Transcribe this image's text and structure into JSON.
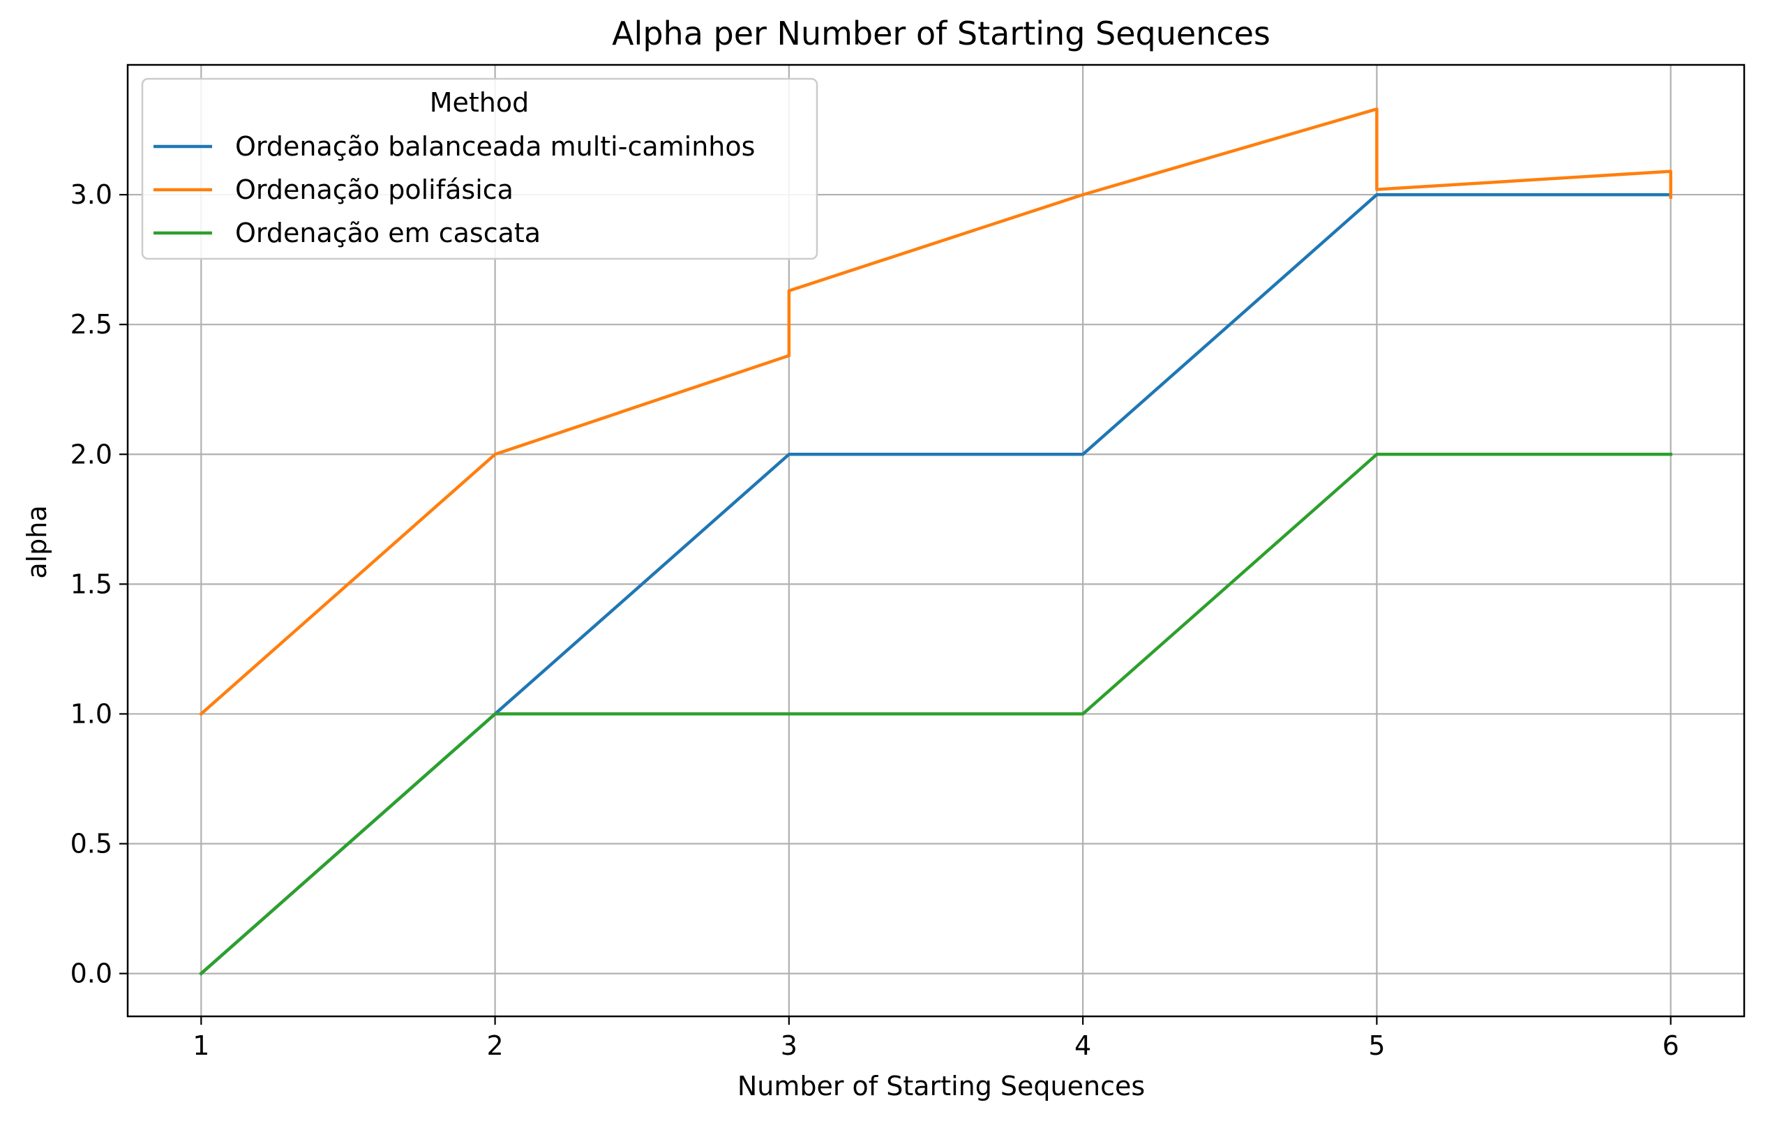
{
  "chart_data": {
    "type": "line",
    "title": "Alpha per Number of Starting Sequences",
    "xlabel": "Number of Starting Sequences",
    "ylabel": "alpha",
    "xlim": [
      0.75,
      6.25
    ],
    "ylim": [
      -0.165,
      3.5
    ],
    "xticks": [
      1,
      2,
      3,
      4,
      5,
      6
    ],
    "xtick_labels": [
      "1",
      "2",
      "3",
      "4",
      "5",
      "6"
    ],
    "yticks": [
      0.0,
      0.5,
      1.0,
      1.5,
      2.0,
      2.5,
      3.0
    ],
    "ytick_labels": [
      "0.0",
      "0.5",
      "1.0",
      "1.5",
      "2.0",
      "2.5",
      "3.0"
    ],
    "grid": true,
    "legend": {
      "title": "Method",
      "placement": "upper-left"
    },
    "series": [
      {
        "name": "Ordenação balanceada multi-caminhos",
        "color": "#1f77b4",
        "x": [
          1,
          2,
          3,
          4,
          5,
          6
        ],
        "y": [
          0,
          1,
          2,
          2,
          3,
          3
        ]
      },
      {
        "name": "Ordenação polifásica",
        "color": "#ff7f0e",
        "x": [
          1,
          2,
          3,
          3,
          4,
          5,
          5,
          6,
          6
        ],
        "y": [
          1,
          2,
          2.38,
          2.63,
          3,
          3.33,
          3.02,
          3.09,
          2.99
        ]
      },
      {
        "name": "Ordenação em cascata",
        "color": "#2ca02c",
        "x": [
          1,
          2,
          3,
          4,
          5,
          6
        ],
        "y": [
          0,
          1,
          1,
          1,
          2,
          2
        ]
      }
    ]
  }
}
